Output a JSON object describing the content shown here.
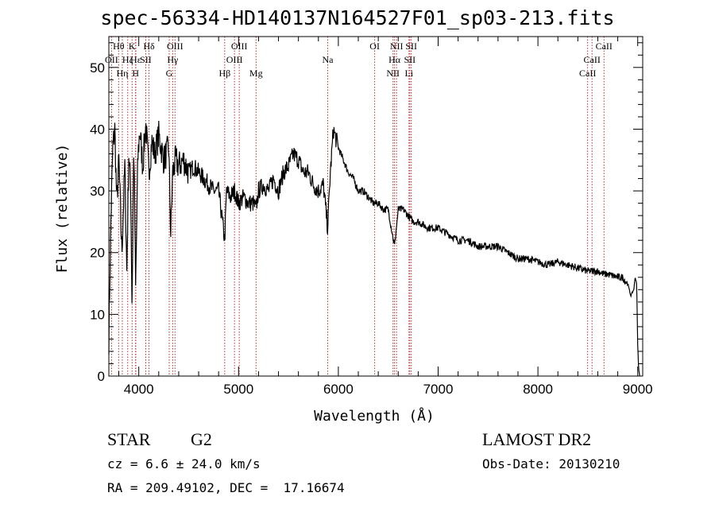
{
  "chart_data": {
    "type": "line",
    "title": "spec-56334-HD140137N164527F01_sp03-213.fits",
    "xlabel": "Wavelength (Å)",
    "ylabel": "Flux (relative)",
    "xlim": [
      3700,
      9050
    ],
    "ylim": [
      0,
      55
    ],
    "xticks": [
      4000,
      5000,
      6000,
      7000,
      8000,
      9000
    ],
    "yticks": [
      0,
      10,
      20,
      30,
      40,
      50
    ],
    "grid": false,
    "line_color": "#000000",
    "marker_color": "#b03030",
    "series": [
      {
        "x": [
          3700,
          3720,
          3740,
          3760,
          3780,
          3800,
          3830,
          3860,
          3880,
          3900,
          3920,
          3933,
          3950,
          3968,
          3990,
          4010,
          4040,
          4070,
          4101,
          4130,
          4160,
          4200,
          4250,
          4300,
          4320,
          4340,
          4370,
          4400,
          4450,
          4500,
          4550,
          4600,
          4650,
          4700,
          4750,
          4800,
          4861,
          4880,
          4920,
          4960,
          5000,
          5050,
          5100,
          5150,
          5175,
          5200,
          5250,
          5300,
          5350,
          5400,
          5450,
          5500,
          5550,
          5600,
          5650,
          5700,
          5750,
          5800,
          5850,
          5893,
          5920,
          5950,
          6000,
          6050,
          6100,
          6150,
          6200,
          6250,
          6300,
          6350,
          6400,
          6450,
          6500,
          6563,
          6600,
          6650,
          6700,
          6750,
          6800,
          6900,
          7000,
          7100,
          7200,
          7300,
          7400,
          7500,
          7600,
          7700,
          7800,
          7900,
          8000,
          8100,
          8200,
          8300,
          8400,
          8500,
          8542,
          8600,
          8662,
          8700,
          8800,
          8850,
          8870,
          8900,
          8930,
          8960,
          8975,
          8990,
          9000,
          9010,
          9020
        ],
        "y": [
          6,
          25,
          37,
          40,
          28,
          35,
          20,
          34,
          17,
          36,
          30,
          11,
          38,
          14,
          35,
          40,
          34,
          41,
          33,
          38,
          36,
          39,
          35,
          37,
          23,
          33,
          35,
          34,
          35,
          33,
          34,
          33,
          32,
          31,
          30,
          30,
          22,
          30,
          29,
          30,
          28,
          29,
          28,
          28,
          27,
          30,
          31,
          30,
          32,
          30,
          33,
          34,
          36,
          35,
          33,
          33,
          31,
          30,
          31,
          24,
          33,
          40,
          37,
          35,
          33,
          32,
          30,
          30,
          29,
          28,
          28,
          27,
          27,
          21,
          27,
          27,
          26,
          25,
          25,
          24,
          24,
          23,
          22,
          22,
          21,
          21,
          21,
          20,
          19,
          19,
          18.5,
          18,
          18.5,
          18,
          17.5,
          17,
          17,
          17,
          16.5,
          16.5,
          16,
          16,
          15.5,
          15,
          13,
          14,
          16,
          15,
          5,
          1,
          0
        ]
      }
    ],
    "lines": [
      {
        "name": "OII",
        "x": 3727
      },
      {
        "name": "Hθ",
        "x": 3798
      },
      {
        "name": "Hη",
        "x": 3835
      },
      {
        "name": "Hζ",
        "x": 3889
      },
      {
        "name": "K",
        "x": 3933
      },
      {
        "name": "H",
        "x": 3968
      },
      {
        "name": "Hε",
        "x": 3970
      },
      {
        "name": "SII",
        "x": 4070
      },
      {
        "name": "Hδ",
        "x": 4102
      },
      {
        "name": "G",
        "x": 4305
      },
      {
        "name": "Hγ",
        "x": 4340
      },
      {
        "name": "OIII",
        "x": 4363
      },
      {
        "name": "Hβ",
        "x": 4861
      },
      {
        "name": "OIII",
        "x": 4959
      },
      {
        "name": "OIII",
        "x": 5007
      },
      {
        "name": "Mg",
        "x": 5175
      },
      {
        "name": "Na",
        "x": 5893
      },
      {
        "name": "OI",
        "x": 6364
      },
      {
        "name": "NII",
        "x": 6548
      },
      {
        "name": "Hα",
        "x": 6563
      },
      {
        "name": "NII",
        "x": 6583
      },
      {
        "name": "Li",
        "x": 6708
      },
      {
        "name": "SII",
        "x": 6716
      },
      {
        "name": "SII",
        "x": 6731
      },
      {
        "name": "CaII",
        "x": 8498
      },
      {
        "name": "CaII",
        "x": 8542
      },
      {
        "name": "CaII",
        "x": 8662
      }
    ],
    "line_labels": [
      {
        "text": "Hθ",
        "x": 3798,
        "row": 0
      },
      {
        "text": "K",
        "x": 3933,
        "row": 0
      },
      {
        "text": "Hδ",
        "x": 4102,
        "row": 0
      },
      {
        "text": "OIII",
        "x": 4363,
        "row": 0
      },
      {
        "text": "OIII",
        "x": 5007,
        "row": 0
      },
      {
        "text": "OI",
        "x": 6364,
        "row": 0
      },
      {
        "text": "NII",
        "x": 6583,
        "row": 0
      },
      {
        "text": "SII",
        "x": 6731,
        "row": 0
      },
      {
        "text": "CaII",
        "x": 8662,
        "row": 0
      },
      {
        "text": "OII",
        "x": 3727,
        "row": 1
      },
      {
        "text": "Hζ",
        "x": 3889,
        "row": 1
      },
      {
        "text": "SII",
        "x": 4070,
        "row": 1
      },
      {
        "text": "Hγ",
        "x": 4340,
        "row": 1
      },
      {
        "text": "OIII",
        "x": 4959,
        "row": 1
      },
      {
        "text": "Na",
        "x": 5893,
        "row": 1
      },
      {
        "text": "Hα",
        "x": 6563,
        "row": 1
      },
      {
        "text": "SII",
        "x": 6716,
        "row": 1
      },
      {
        "text": "CaII",
        "x": 8542,
        "row": 1
      },
      {
        "text": "Hε",
        "x": 3970,
        "row": 1
      },
      {
        "text": "Hη",
        "x": 3835,
        "row": 2
      },
      {
        "text": "H",
        "x": 3968,
        "row": 2
      },
      {
        "text": "G",
        "x": 4305,
        "row": 2
      },
      {
        "text": "Hβ",
        "x": 4861,
        "row": 2
      },
      {
        "text": "Mg",
        "x": 5175,
        "row": 2
      },
      {
        "text": "NII",
        "x": 6548,
        "row": 2
      },
      {
        "text": "Li",
        "x": 6708,
        "row": 2
      },
      {
        "text": "CaII",
        "x": 8498,
        "row": 2
      }
    ]
  },
  "info": {
    "class_label": "STAR",
    "subclass": "G2",
    "survey": "LAMOST DR2",
    "cz": "cz = 6.6 ± 24.0 km/s",
    "obs_date": "Obs-Date: 20130210",
    "radec": "RA = 209.49102, DEC =  17.16674"
  }
}
